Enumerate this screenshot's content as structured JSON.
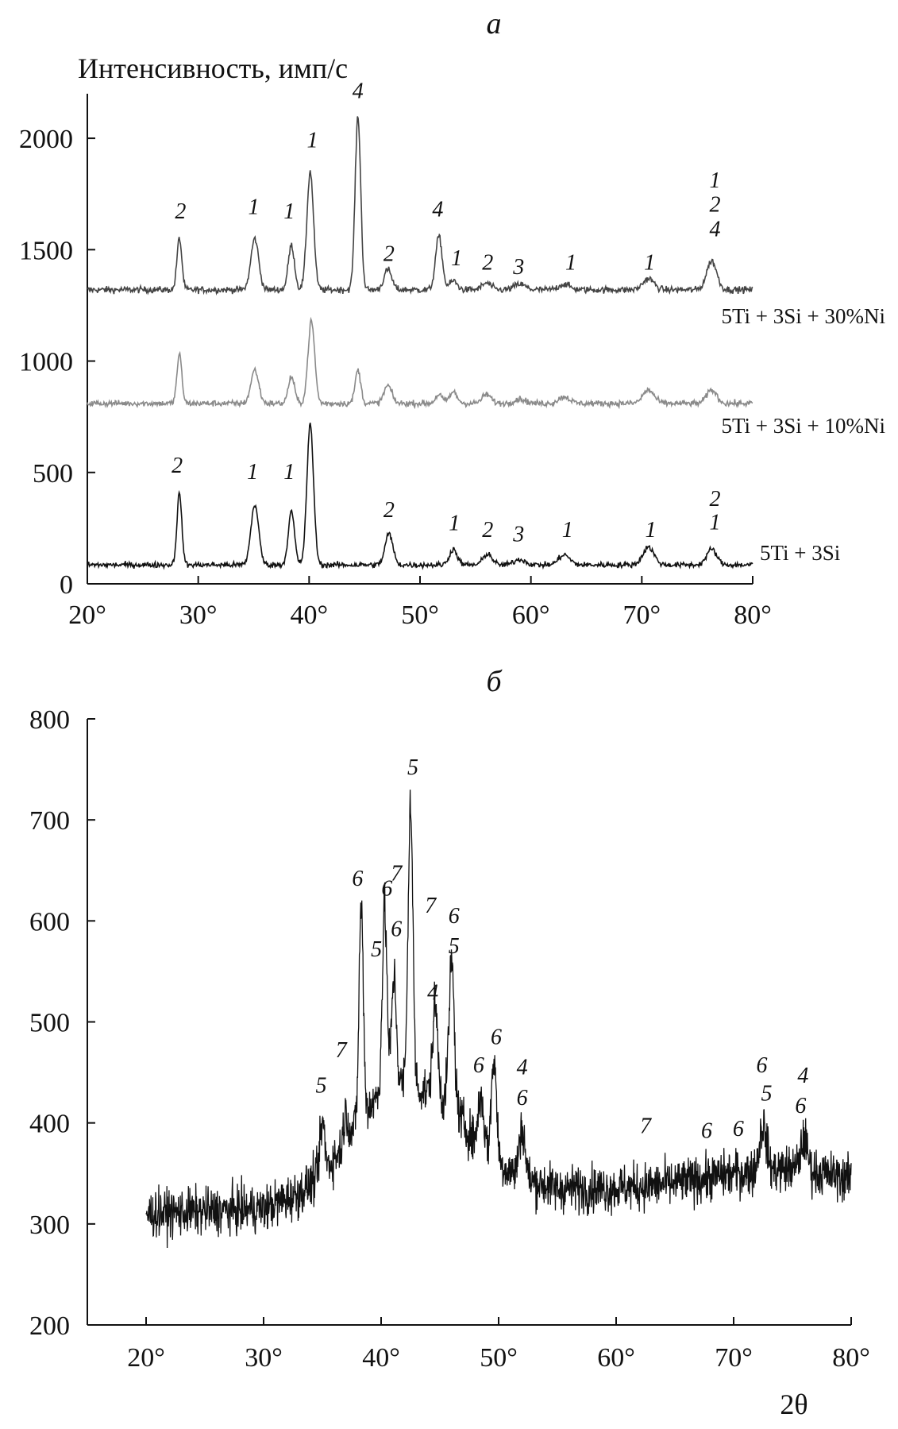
{
  "chart_data": [
    {
      "type": "line",
      "panel": "a",
      "title": "а",
      "ylabel": "Интенсивность, имп/с",
      "xlabel": "",
      "xlim": [
        20,
        80
      ],
      "ylim": [
        0,
        2200
      ],
      "x_ticks": [
        20,
        30,
        40,
        50,
        60,
        70,
        80
      ],
      "x_tick_labels": [
        "20°",
        "30°",
        "40°",
        "50°",
        "60°",
        "70°",
        "80°"
      ],
      "y_ticks": [
        0,
        500,
        1000,
        1500,
        2000
      ],
      "y_tick_labels": [
        "0",
        "500",
        "1000",
        "1500",
        "2000"
      ],
      "grid": false,
      "series": [
        {
          "name": "5Ti + 3Si + 30%Ni",
          "color": "#444444",
          "baseline": 1320,
          "noise": 14,
          "peaks": [
            {
              "x": 28.3,
              "height": 230,
              "width": 0.22
            },
            {
              "x": 35.1,
              "height": 230,
              "width": 0.35
            },
            {
              "x": 38.4,
              "height": 200,
              "width": 0.28
            },
            {
              "x": 40.1,
              "height": 530,
              "width": 0.3
            },
            {
              "x": 44.4,
              "height": 780,
              "width": 0.25
            },
            {
              "x": 47.1,
              "height": 90,
              "width": 0.35
            },
            {
              "x": 51.7,
              "height": 240,
              "width": 0.3
            },
            {
              "x": 53.0,
              "height": 40,
              "width": 0.35
            },
            {
              "x": 56.0,
              "height": 30,
              "width": 0.4
            },
            {
              "x": 59.0,
              "height": 25,
              "width": 0.5
            },
            {
              "x": 63.0,
              "height": 25,
              "width": 0.5
            },
            {
              "x": 70.6,
              "height": 50,
              "width": 0.5
            },
            {
              "x": 76.3,
              "height": 130,
              "width": 0.45
            }
          ],
          "labels": [
            {
              "x": 28.4,
              "y": 1640,
              "text": "2"
            },
            {
              "x": 35.0,
              "y": 1660,
              "text": "1"
            },
            {
              "x": 38.2,
              "y": 1640,
              "text": "1"
            },
            {
              "x": 40.3,
              "y": 1960,
              "text": "1"
            },
            {
              "x": 44.4,
              "y": 2180,
              "text": "4"
            },
            {
              "x": 47.2,
              "y": 1450,
              "text": "2"
            },
            {
              "x": 51.6,
              "y": 1650,
              "text": "4"
            },
            {
              "x": 53.3,
              "y": 1430,
              "text": "1"
            },
            {
              "x": 56.1,
              "y": 1410,
              "text": "2"
            },
            {
              "x": 58.9,
              "y": 1390,
              "text": "3"
            },
            {
              "x": 63.6,
              "y": 1410,
              "text": "1"
            },
            {
              "x": 70.7,
              "y": 1410,
              "text": "1"
            },
            {
              "x": 76.6,
              "y": 1780,
              "text": "1"
            },
            {
              "x": 76.6,
              "y": 1670,
              "text": "2"
            },
            {
              "x": 76.6,
              "y": 1560,
              "text": "4"
            }
          ]
        },
        {
          "name": "5Ti + 3Si + 10%Ni",
          "color": "#8a8a8a",
          "baseline": 810,
          "noise": 13,
          "peaks": [
            {
              "x": 28.3,
              "height": 220,
              "width": 0.22
            },
            {
              "x": 35.1,
              "height": 150,
              "width": 0.35
            },
            {
              "x": 38.4,
              "height": 120,
              "width": 0.28
            },
            {
              "x": 40.2,
              "height": 370,
              "width": 0.3
            },
            {
              "x": 44.4,
              "height": 150,
              "width": 0.25
            },
            {
              "x": 47.1,
              "height": 80,
              "width": 0.35
            },
            {
              "x": 51.7,
              "height": 40,
              "width": 0.3
            },
            {
              "x": 53.0,
              "height": 50,
              "width": 0.35
            },
            {
              "x": 56.0,
              "height": 40,
              "width": 0.4
            },
            {
              "x": 59.0,
              "height": 20,
              "width": 0.5
            },
            {
              "x": 63.0,
              "height": 30,
              "width": 0.5
            },
            {
              "x": 70.6,
              "height": 60,
              "width": 0.5
            },
            {
              "x": 76.3,
              "height": 60,
              "width": 0.45
            }
          ],
          "labels": []
        },
        {
          "name": "5Ti + 3Si",
          "color": "#111111",
          "baseline": 85,
          "noise": 12,
          "peaks": [
            {
              "x": 28.3,
              "height": 320,
              "width": 0.22
            },
            {
              "x": 35.1,
              "height": 270,
              "width": 0.35
            },
            {
              "x": 38.4,
              "height": 240,
              "width": 0.28
            },
            {
              "x": 40.1,
              "height": 630,
              "width": 0.3
            },
            {
              "x": 47.2,
              "height": 140,
              "width": 0.35
            },
            {
              "x": 53.0,
              "height": 70,
              "width": 0.35
            },
            {
              "x": 56.1,
              "height": 50,
              "width": 0.4
            },
            {
              "x": 59.0,
              "height": 25,
              "width": 0.5
            },
            {
              "x": 63.0,
              "height": 45,
              "width": 0.5
            },
            {
              "x": 70.6,
              "height": 80,
              "width": 0.5
            },
            {
              "x": 76.3,
              "height": 70,
              "width": 0.45
            }
          ],
          "labels": [
            {
              "x": 28.1,
              "y": 500,
              "text": "2"
            },
            {
              "x": 34.9,
              "y": 470,
              "text": "1"
            },
            {
              "x": 38.2,
              "y": 470,
              "text": "1"
            },
            {
              "x": 47.2,
              "y": 300,
              "text": "2"
            },
            {
              "x": 53.1,
              "y": 240,
              "text": "1"
            },
            {
              "x": 56.1,
              "y": 210,
              "text": "2"
            },
            {
              "x": 58.9,
              "y": 190,
              "text": "3"
            },
            {
              "x": 63.3,
              "y": 210,
              "text": "1"
            },
            {
              "x": 70.8,
              "y": 210,
              "text": "1"
            },
            {
              "x": 76.6,
              "y": 350,
              "text": "2"
            },
            {
              "x": 76.6,
              "y": 245,
              "text": "1"
            }
          ]
        }
      ]
    },
    {
      "type": "line",
      "panel": "b",
      "title": "б",
      "xlabel": "2θ",
      "ylabel": "",
      "xlim": [
        15,
        80
      ],
      "ylim": [
        200,
        800
      ],
      "x_ticks": [
        20,
        30,
        40,
        50,
        60,
        70,
        80
      ],
      "x_tick_labels": [
        "20°",
        "30°",
        "40°",
        "50°",
        "60°",
        "70°",
        "80°"
      ],
      "y_ticks": [
        200,
        300,
        400,
        500,
        600,
        700,
        800
      ],
      "y_tick_labels": [
        "200",
        "300",
        "400",
        "500",
        "600",
        "700",
        "800"
      ],
      "grid": false,
      "series": [
        {
          "name": "",
          "color": "#111111",
          "noise": 22,
          "baseline_points": [
            [
              20,
              310
            ],
            [
              30,
              315
            ],
            [
              33,
              330
            ],
            [
              35,
              350
            ],
            [
              37,
              380
            ],
            [
              38.5,
              410
            ],
            [
              40,
              430
            ],
            [
              42,
              440
            ],
            [
              44,
              430
            ],
            [
              46,
              420
            ],
            [
              48,
              380
            ],
            [
              50,
              360
            ],
            [
              52,
              345
            ],
            [
              55,
              335
            ],
            [
              60,
              335
            ],
            [
              65,
              340
            ],
            [
              70,
              350
            ],
            [
              75,
              355
            ],
            [
              80,
              345
            ]
          ],
          "peaks": [
            {
              "x": 35.0,
              "height": 50,
              "width": 0.2
            },
            {
              "x": 37.0,
              "height": 30,
              "width": 0.2
            },
            {
              "x": 38.3,
              "height": 210,
              "width": 0.18
            },
            {
              "x": 40.3,
              "height": 180,
              "width": 0.2
            },
            {
              "x": 41.1,
              "height": 110,
              "width": 0.2
            },
            {
              "x": 42.5,
              "height": 280,
              "width": 0.2
            },
            {
              "x": 44.6,
              "height": 90,
              "width": 0.22
            },
            {
              "x": 46.0,
              "height": 140,
              "width": 0.22
            },
            {
              "x": 48.5,
              "height": 50,
              "width": 0.25
            },
            {
              "x": 49.6,
              "height": 100,
              "width": 0.22
            },
            {
              "x": 52.0,
              "height": 50,
              "width": 0.25
            },
            {
              "x": 72.5,
              "height": 45,
              "width": 0.3
            },
            {
              "x": 76.0,
              "height": 30,
              "width": 0.3
            }
          ],
          "labels": [
            {
              "x": 34.9,
              "y": 430,
              "text": "5"
            },
            {
              "x": 36.6,
              "y": 465,
              "text": "7"
            },
            {
              "x": 38.0,
              "y": 635,
              "text": "6"
            },
            {
              "x": 39.6,
              "y": 565,
              "text": "5"
            },
            {
              "x": 40.5,
              "y": 625,
              "text": "6"
            },
            {
              "x": 41.3,
              "y": 640,
              "text": "7"
            },
            {
              "x": 41.3,
              "y": 585,
              "text": "6"
            },
            {
              "x": 42.7,
              "y": 745,
              "text": "5"
            },
            {
              "x": 44.2,
              "y": 608,
              "text": "7"
            },
            {
              "x": 44.4,
              "y": 522,
              "text": "4"
            },
            {
              "x": 46.2,
              "y": 598,
              "text": "6"
            },
            {
              "x": 46.2,
              "y": 568,
              "text": "5"
            },
            {
              "x": 48.3,
              "y": 450,
              "text": "6"
            },
            {
              "x": 49.8,
              "y": 478,
              "text": "6"
            },
            {
              "x": 52.0,
              "y": 448,
              "text": "4"
            },
            {
              "x": 52.0,
              "y": 418,
              "text": "6"
            },
            {
              "x": 62.5,
              "y": 390,
              "text": "7"
            },
            {
              "x": 67.7,
              "y": 385,
              "text": "6"
            },
            {
              "x": 70.4,
              "y": 387,
              "text": "6"
            },
            {
              "x": 72.4,
              "y": 450,
              "text": "6"
            },
            {
              "x": 72.8,
              "y": 422,
              "text": "5"
            },
            {
              "x": 75.9,
              "y": 440,
              "text": "4"
            },
            {
              "x": 75.7,
              "y": 410,
              "text": "6"
            }
          ]
        }
      ]
    }
  ]
}
